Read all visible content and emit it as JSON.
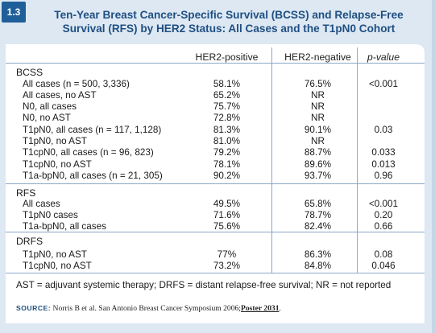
{
  "figure": {
    "number": "1.3",
    "title_line1": "Ten-Year Breast Cancer-Specific Survival (BCSS) and Relapse-Free",
    "title_line2": "Survival (RFS) by HER2 Status: All Cases and the T1pN0 Cohort"
  },
  "table": {
    "headers": [
      "HER2-positive",
      "HER2-negative",
      "p-value"
    ],
    "sections": [
      {
        "label": "BCSS",
        "rows": [
          {
            "label": "All cases (n = 500, 3,336)",
            "pos": "58.1%",
            "neg": "76.5%",
            "p": "<0.001"
          },
          {
            "label": "All cases, no AST",
            "pos": "65.2%",
            "neg": "NR",
            "p": ""
          },
          {
            "label": "N0, all cases",
            "pos": "75.7%",
            "neg": "NR",
            "p": ""
          },
          {
            "label": "N0, no AST",
            "pos": "72.8%",
            "neg": "NR",
            "p": ""
          },
          {
            "label": "T1pN0, all cases (n = 117, 1,128)",
            "pos": "81.3%",
            "neg": "90.1%",
            "p": "0.03"
          },
          {
            "label": "T1pN0, no AST",
            "pos": "81.0%",
            "neg": "NR",
            "p": ""
          },
          {
            "label": "T1cpN0, all cases (n = 96, 823)",
            "pos": "79.2%",
            "neg": "88.7%",
            "p": "0.033"
          },
          {
            "label": "T1cpN0, no AST",
            "pos": "78.1%",
            "neg": "89.6%",
            "p": "0.013"
          },
          {
            "label": "T1a-bpN0, all cases (n = 21, 305)",
            "pos": "90.2%",
            "neg": "93.7%",
            "p": "0.96"
          }
        ]
      },
      {
        "label": "RFS",
        "rows": [
          {
            "label": "All cases",
            "pos": "49.5%",
            "neg": "65.8%",
            "p": "<0.001"
          },
          {
            "label": "T1pN0 cases",
            "pos": "71.6%",
            "neg": "78.7%",
            "p": "0.20"
          },
          {
            "label": "T1a-bpN0, all cases",
            "pos": "75.6%",
            "neg": "82.4%",
            "p": "0.66"
          }
        ]
      },
      {
        "label": "DRFS",
        "rows": [
          {
            "label": "T1pN0, no AST",
            "pos": "77%",
            "neg": "86.3%",
            "p": "0.08"
          },
          {
            "label": "T1cpN0, no AST",
            "pos": "73.2%",
            "neg": "84.8%",
            "p": "0.046"
          }
        ]
      }
    ]
  },
  "footnote": "AST = adjuvant systemic therapy; DRFS = distant relapse-free survival; NR = not reported",
  "source": {
    "key": "SOURCE:",
    "text": "Norris B et al. San Antonio Breast Cancer Symposium 2006;",
    "link": "Poster 2031",
    "end": "."
  },
  "colors": {
    "accent": "#1f5f99",
    "title": "#1f4f82",
    "background": "#dde8f3",
    "rule": "#8aa7c6"
  }
}
